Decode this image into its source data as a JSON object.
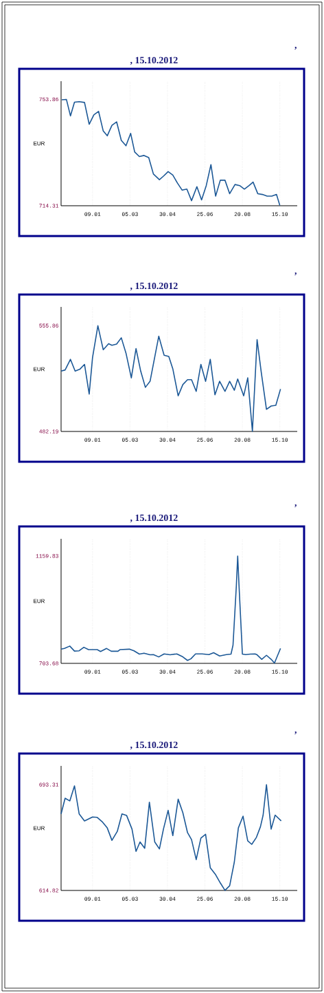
{
  "chart_data": [
    {
      "type": "line",
      "title": ",",
      "subtitle": ", 15.10.2012",
      "ylabel": "EUR",
      "color": "#1c5896",
      "grid": "x",
      "xlim": [
        "2011-11-23",
        "2012-11-10"
      ],
      "ylim": [
        714.31,
        760.6
      ],
      "xticks": [
        {
          "value": "2012-01-09",
          "label": "09.01"
        },
        {
          "value": "2012-03-05",
          "label": "05.03"
        },
        {
          "value": "2012-04-30",
          "label": "30.04"
        },
        {
          "value": "2012-06-25",
          "label": "25.06"
        },
        {
          "value": "2012-08-20",
          "label": "20.08"
        },
        {
          "value": "2012-10-15",
          "label": "15.10"
        }
      ],
      "yticks": [
        714.31,
        753.86
      ],
      "x": [
        "2011-11-24",
        "2011-12-01",
        "2011-12-07",
        "2011-12-13",
        "2011-12-20",
        "2011-12-28",
        "2012-01-04",
        "2012-01-11",
        "2012-01-18",
        "2012-01-25",
        "2012-01-31",
        "2012-02-07",
        "2012-02-14",
        "2012-02-21",
        "2012-02-28",
        "2012-03-06",
        "2012-03-12",
        "2012-03-19",
        "2012-03-26",
        "2012-04-02",
        "2012-04-09",
        "2012-04-18",
        "2012-04-24",
        "2012-05-01",
        "2012-05-08",
        "2012-05-15",
        "2012-05-22",
        "2012-05-29",
        "2012-06-05",
        "2012-06-13",
        "2012-06-20",
        "2012-06-27",
        "2012-07-04",
        "2012-07-11",
        "2012-07-18",
        "2012-07-25",
        "2012-08-01",
        "2012-08-09",
        "2012-08-16",
        "2012-08-23",
        "2012-08-30",
        "2012-09-05",
        "2012-09-12",
        "2012-09-19",
        "2012-09-26",
        "2012-10-03",
        "2012-10-10",
        "2012-10-15"
      ],
      "values": [
        753.7,
        753.8,
        747.7,
        752.8,
        753.0,
        752.7,
        744.6,
        748.1,
        749.4,
        742.1,
        740.3,
        744.2,
        745.5,
        738.6,
        736.6,
        741.2,
        734.3,
        732.6,
        733.0,
        732.2,
        726.1,
        724.0,
        725.3,
        727.0,
        725.7,
        722.7,
        720.1,
        720.5,
        716.2,
        721.4,
        716.5,
        721.8,
        729.6,
        717.9,
        723.8,
        723.8,
        718.8,
        722.2,
        721.8,
        720.5,
        721.8,
        723.1,
        718.8,
        718.5,
        717.9,
        717.9,
        718.5,
        714.4
      ]
    },
    {
      "type": "line",
      "title": ",",
      "subtitle": ", 15.10.2012",
      "ylabel": "EUR",
      "color": "#1c5896",
      "grid": "x",
      "xlim": [
        "2011-11-23",
        "2012-11-10"
      ],
      "ylim": [
        482.19,
        568.9
      ],
      "xticks": [
        {
          "value": "2012-01-09",
          "label": "09.01"
        },
        {
          "value": "2012-03-05",
          "label": "05.03"
        },
        {
          "value": "2012-04-30",
          "label": "30.04"
        },
        {
          "value": "2012-06-25",
          "label": "25.06"
        },
        {
          "value": "2012-08-20",
          "label": "20.08"
        },
        {
          "value": "2012-10-15",
          "label": "15.10"
        }
      ],
      "yticks": [
        482.19,
        555.86
      ],
      "x": [
        "2011-11-23",
        "2011-11-29",
        "2011-12-07",
        "2011-12-14",
        "2011-12-21",
        "2011-12-28",
        "2012-01-04",
        "2012-01-09",
        "2012-01-17",
        "2012-01-25",
        "2012-02-02",
        "2012-02-07",
        "2012-02-14",
        "2012-02-21",
        "2012-02-28",
        "2012-03-07",
        "2012-03-14",
        "2012-03-21",
        "2012-03-28",
        "2012-04-04",
        "2012-04-17",
        "2012-04-25",
        "2012-05-02",
        "2012-05-08",
        "2012-05-16",
        "2012-05-23",
        "2012-05-30",
        "2012-06-05",
        "2012-06-12",
        "2012-06-19",
        "2012-06-26",
        "2012-07-03",
        "2012-07-10",
        "2012-07-17",
        "2012-07-25",
        "2012-08-01",
        "2012-08-08",
        "2012-08-13",
        "2012-08-22",
        "2012-08-28",
        "2012-09-04",
        "2012-09-11",
        "2012-09-17",
        "2012-09-25",
        "2012-10-02",
        "2012-10-09",
        "2012-10-16"
      ],
      "values": [
        524.2,
        525.0,
        532.4,
        524.2,
        525.5,
        528.9,
        508.2,
        533.6,
        555.8,
        539.1,
        543.3,
        542.2,
        543.0,
        547.4,
        536.7,
        519.5,
        539.9,
        524.2,
        512.9,
        517.1,
        548.5,
        535.2,
        534.4,
        525.8,
        507.0,
        514.8,
        518.2,
        518.2,
        510.1,
        528.9,
        517.1,
        532.4,
        507.7,
        517.1,
        510.1,
        517.1,
        510.9,
        518.7,
        507.0,
        519.5,
        482.3,
        546.1,
        524.2,
        497.6,
        499.9,
        500.4,
        511.7
      ]
    },
    {
      "type": "line",
      "title": ",",
      "subtitle": ", 15.10.2012",
      "ylabel": "EUR",
      "color": "#1c5896",
      "grid": "x",
      "xlim": [
        "2011-11-23",
        "2012-11-10"
      ],
      "ylim": [
        703.68,
        1232.6
      ],
      "xticks": [
        {
          "value": "2012-01-09",
          "label": "09.01"
        },
        {
          "value": "2012-03-05",
          "label": "05.03"
        },
        {
          "value": "2012-04-30",
          "label": "30.04"
        },
        {
          "value": "2012-06-25",
          "label": "25.06"
        },
        {
          "value": "2012-08-20",
          "label": "20.08"
        },
        {
          "value": "2012-10-15",
          "label": "15.10"
        }
      ],
      "yticks": [
        703.68,
        1159.83
      ],
      "x": [
        "2011-11-23",
        "2011-11-28",
        "2011-12-06",
        "2011-12-13",
        "2011-12-20",
        "2011-12-27",
        "2012-01-03",
        "2012-01-16",
        "2012-01-21",
        "2012-01-30",
        "2012-02-06",
        "2012-02-16",
        "2012-02-19",
        "2012-03-04",
        "2012-03-11",
        "2012-03-19",
        "2012-03-26",
        "2012-04-04",
        "2012-04-09",
        "2012-04-17",
        "2012-04-25",
        "2012-05-04",
        "2012-05-14",
        "2012-05-22",
        "2012-05-30",
        "2012-06-04",
        "2012-06-11",
        "2012-06-21",
        "2012-07-01",
        "2012-07-08",
        "2012-07-17",
        "2012-07-27",
        "2012-08-03",
        "2012-08-06",
        "2012-08-11",
        "2012-08-13",
        "2012-08-15",
        "2012-08-20",
        "2012-08-25",
        "2012-09-01",
        "2012-09-08",
        "2012-09-11",
        "2012-09-18",
        "2012-09-25",
        "2012-10-02",
        "2012-10-07",
        "2012-10-16"
      ],
      "values": [
        764,
        767,
        777,
        756,
        757,
        772,
        762,
        762,
        754,
        767,
        755,
        755,
        762,
        764,
        757,
        743,
        747,
        740,
        741,
        731,
        744,
        740,
        744,
        733,
        716,
        723,
        744,
        744,
        741,
        749,
        735,
        741,
        743,
        781,
        1034,
        1159,
        1034,
        743,
        741,
        743,
        744,
        740,
        721,
        738,
        721,
        705,
        767
      ]
    },
    {
      "type": "line",
      "title": ",",
      "subtitle": ", 15.10.2012",
      "ylabel": "EUR",
      "color": "#1c5896",
      "grid": "x",
      "xlim": [
        "2011-11-23",
        "2012-11-10"
      ],
      "ylim": [
        614.82,
        707.2
      ],
      "xticks": [
        {
          "value": "2012-01-09",
          "label": "09.01"
        },
        {
          "value": "2012-03-05",
          "label": "05.03"
        },
        {
          "value": "2012-04-30",
          "label": "30.04"
        },
        {
          "value": "2012-06-25",
          "label": "25.06"
        },
        {
          "value": "2012-08-20",
          "label": "20.08"
        },
        {
          "value": "2012-10-15",
          "label": "15.10"
        }
      ],
      "yticks": [
        614.82,
        693.31
      ],
      "x": [
        "2011-11-23",
        "2011-11-29",
        "2011-12-06",
        "2011-12-13",
        "2011-12-20",
        "2011-12-28",
        "2012-01-09",
        "2012-01-16",
        "2012-01-24",
        "2012-01-31",
        "2012-02-07",
        "2012-02-15",
        "2012-02-22",
        "2012-02-29",
        "2012-03-08",
        "2012-03-14",
        "2012-03-20",
        "2012-03-27",
        "2012-04-03",
        "2012-04-11",
        "2012-04-18",
        "2012-04-24",
        "2012-05-01",
        "2012-05-08",
        "2012-05-16",
        "2012-05-23",
        "2012-05-30",
        "2012-06-05",
        "2012-06-12",
        "2012-06-19",
        "2012-06-26",
        "2012-07-03",
        "2012-07-11",
        "2012-07-18",
        "2012-07-25",
        "2012-08-01",
        "2012-08-08",
        "2012-08-14",
        "2012-08-21",
        "2012-08-28",
        "2012-09-03",
        "2012-09-10",
        "2012-09-16",
        "2012-09-20",
        "2012-09-25",
        "2012-10-02",
        "2012-10-08",
        "2012-10-17"
      ],
      "values": [
        671.6,
        683.2,
        681.2,
        692.4,
        671.6,
        666.4,
        669.3,
        669.0,
        665.5,
        661.2,
        652.0,
        658.6,
        671.6,
        670.4,
        660.3,
        643.8,
        650.8,
        646.1,
        680.3,
        650.8,
        645.6,
        660.3,
        674.2,
        655.5,
        682.5,
        672.5,
        657.7,
        652.5,
        637.7,
        653.7,
        656.5,
        631.7,
        626.5,
        620.4,
        614.9,
        618.3,
        636.0,
        661.2,
        669.9,
        651.6,
        649.0,
        654.2,
        662.1,
        670.7,
        693.2,
        660.3,
        670.7,
        666.4
      ]
    }
  ]
}
